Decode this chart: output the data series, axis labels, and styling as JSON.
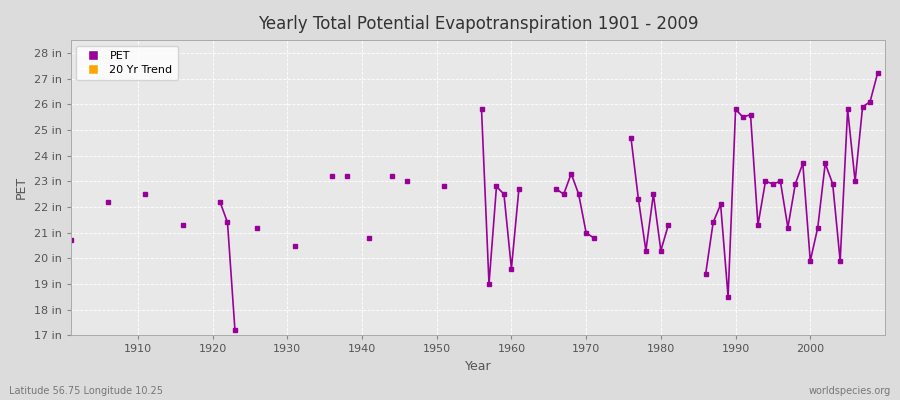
{
  "title": "Yearly Total Potential Evapotranspiration 1901 - 2009",
  "ylabel": "PET",
  "xlabel": "Year",
  "footer_left": "Latitude 56.75 Longitude 10.25",
  "footer_right": "worldspecies.org",
  "ylim": [
    17,
    28.5
  ],
  "yticks": [
    17,
    18,
    19,
    20,
    21,
    22,
    23,
    24,
    25,
    26,
    27,
    28
  ],
  "ytick_labels": [
    "17 in",
    "18 in",
    "19 in",
    "20 in",
    "21 in",
    "22 in",
    "23 in",
    "24 in",
    "25 in",
    "26 in",
    "27 in",
    "28 in"
  ],
  "xlim": [
    1901,
    2010
  ],
  "xticks": [
    1910,
    1920,
    1930,
    1940,
    1950,
    1960,
    1970,
    1980,
    1990,
    2000
  ],
  "xtick_labels": [
    "1910",
    "1920",
    "1930",
    "1940",
    "1950",
    "1960",
    "1970",
    "1980",
    "1990",
    "2000"
  ],
  "pet_color": "#990099",
  "trend_color": "#FFA500",
  "bg_color": "#DCDCDC",
  "plot_bg_color": "#E8E8E8",
  "grid_color": "#FFFFFF",
  "pet_color_line": "#AA00AA",
  "sparse_years": [
    1901,
    1906,
    1911,
    1916,
    1921,
    1922,
    1923,
    1926,
    1931,
    1936,
    1941,
    1946,
    1951,
    1956,
    1961,
    1966,
    1971,
    1976,
    1981,
    1986,
    1991,
    1996,
    2001,
    2006
  ],
  "sparse_values": [
    20.7,
    22.2,
    22.5,
    21.3,
    22.2,
    21.4,
    17.2,
    21.2,
    20.5,
    23.2,
    20.8,
    23.0,
    22.8,
    25.8,
    22.7,
    22.7,
    20.8,
    24.7,
    21.3,
    19.4,
    25.5,
    23.0,
    21.2,
    23.0
  ],
  "dense_segments": [
    {
      "years": [
        1921,
        1922,
        1923
      ],
      "values": [
        22.2,
        21.4,
        17.2
      ]
    },
    {
      "years": [
        1922,
        1923
      ],
      "values": [
        21.4,
        17.2
      ]
    },
    {
      "years": [
        1956,
        1957,
        1958,
        1959,
        1960
      ],
      "values": [
        25.8,
        19.0,
        22.8,
        22.5,
        19.6
      ]
    },
    {
      "years": [
        1966,
        1967,
        1968,
        1969,
        1970
      ],
      "values": [
        22.7,
        22.5,
        23.3,
        22.5,
        21.0
      ]
    },
    {
      "years": [
        1976,
        1977,
        1978,
        1979,
        1980
      ],
      "values": [
        24.7,
        22.3,
        20.3,
        22.5,
        20.3
      ]
    },
    {
      "years": [
        1986,
        1987,
        1988,
        1989,
        1990
      ],
      "values": [
        19.4,
        21.4,
        22.1,
        18.5,
        25.8
      ]
    },
    {
      "years": [
        1991,
        1992,
        1993,
        1994,
        1995,
        1996
      ],
      "values": [
        25.5,
        25.6,
        21.3,
        23.0,
        22.9,
        23.0
      ]
    },
    {
      "years": [
        2001,
        2002,
        2003,
        2004,
        2005,
        2006,
        2007,
        2008,
        2009
      ],
      "values": [
        21.2,
        23.7,
        22.9,
        19.9,
        25.8,
        23.0,
        25.9,
        26.1,
        27.2
      ]
    }
  ]
}
